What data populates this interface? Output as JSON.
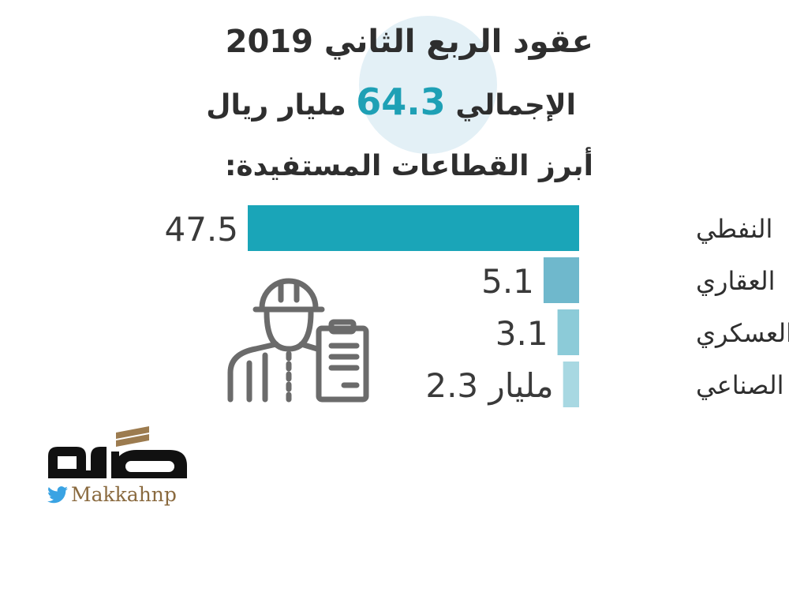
{
  "header": {
    "title": "عقود الربع الثاني 2019",
    "total_prefix": "الإجمالي",
    "total_value": "64.3",
    "total_suffix": "مليار ريال",
    "subtitle": "أبرز القطاعات المستفيدة:"
  },
  "chart_data": {
    "type": "bar",
    "orientation": "horizontal",
    "title": "عقود الربع الثاني 2019",
    "unit": "مليار",
    "categories": [
      "النفطي",
      "العقاري",
      "العسكري",
      "الصناعي"
    ],
    "values": [
      47.5,
      5.1,
      3.1,
      2.3
    ],
    "value_labels": [
      "47.5",
      "5.1",
      "3.1",
      "2.3 مليار"
    ],
    "colors": [
      "#1aa5b8",
      "#6fb8cc",
      "#8ccbd8",
      "#a8d8e2"
    ]
  },
  "branding": {
    "logo_text": "مكة",
    "twitter_handle": "Makkahnp",
    "twitter_color": "#3aa3e3"
  }
}
